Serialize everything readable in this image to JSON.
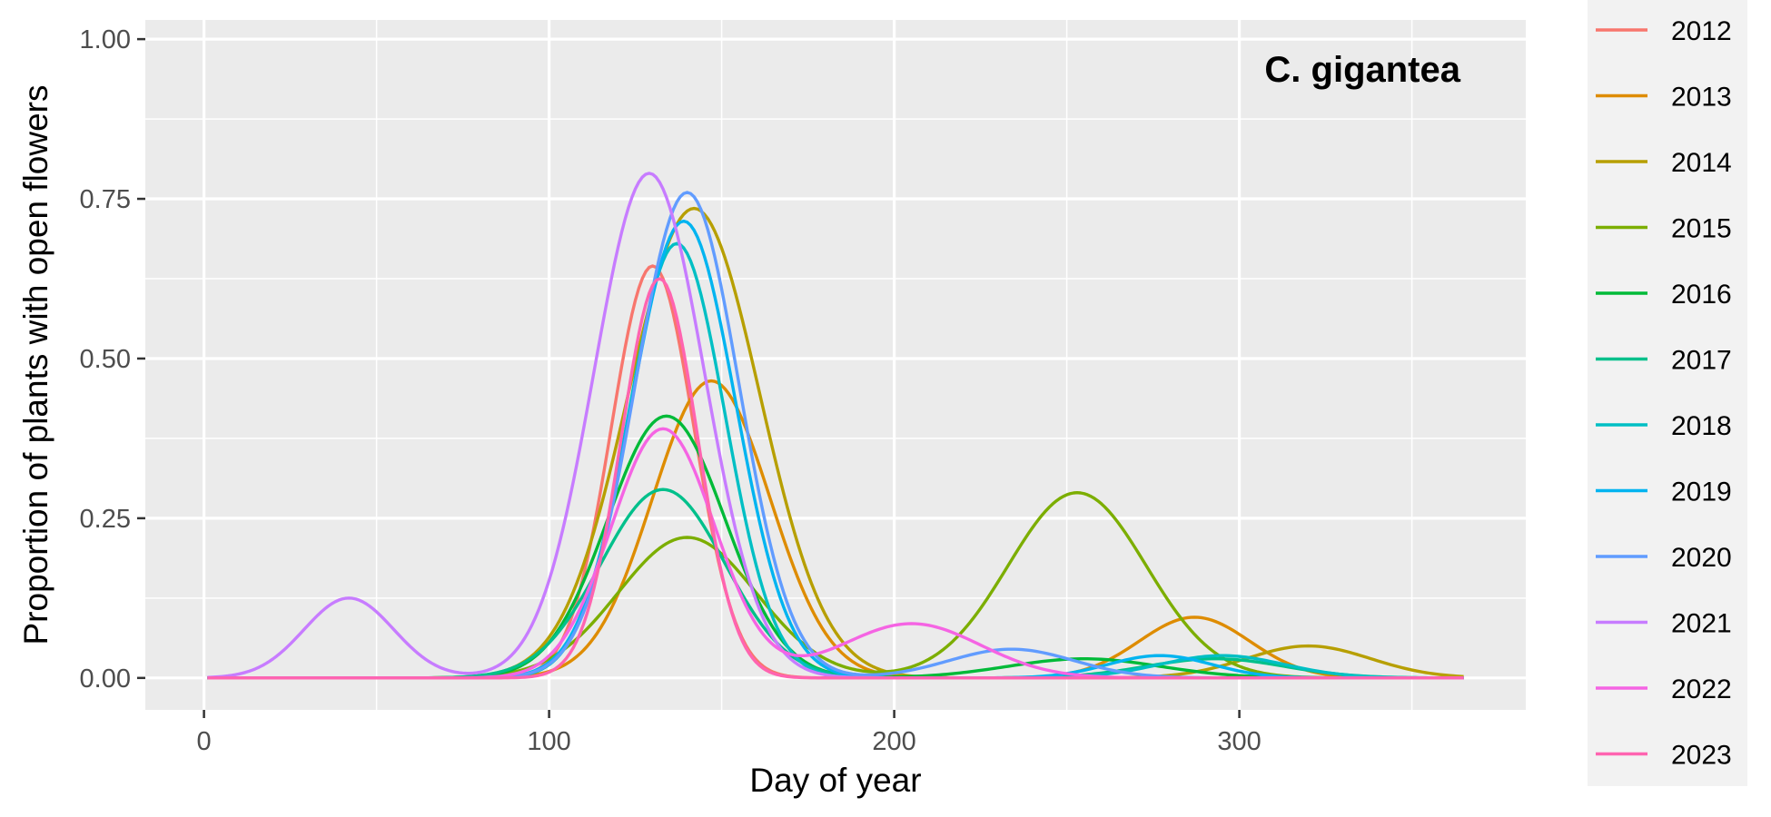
{
  "chart_data": {
    "type": "line",
    "title": "",
    "annotation": "C. gigantea",
    "xlabel": "Day of year",
    "ylabel": "Proportion of plants with open flowers",
    "xlim": [
      -17,
      383
    ],
    "ylim": [
      -0.05,
      1.03
    ],
    "x_ticks": [
      0,
      100,
      200,
      300
    ],
    "x_tick_labels": [
      "0",
      "100",
      "200",
      "300"
    ],
    "y_ticks": [
      0,
      0.25,
      0.5,
      0.75,
      1.0
    ],
    "y_tick_labels": [
      "0.00",
      "0.25",
      "0.50",
      "0.75",
      "1.00"
    ],
    "grid": true,
    "legend_position": "right",
    "background_color": "#EBEBEB",
    "series": [
      {
        "name": "2012",
        "color": "#F8766D",
        "peaks": [
          [
            130,
            0.645,
            12
          ]
        ]
      },
      {
        "name": "2013",
        "color": "#DE8C00",
        "peaks": [
          [
            147,
            0.465,
            17
          ],
          [
            287,
            0.095,
            16
          ]
        ]
      },
      {
        "name": "2014",
        "color": "#B79F00",
        "peaks": [
          [
            142,
            0.735,
            19
          ],
          [
            320,
            0.05,
            18
          ]
        ]
      },
      {
        "name": "2015",
        "color": "#7CAE00",
        "peaks": [
          [
            140,
            0.22,
            20
          ],
          [
            253,
            0.29,
            20
          ]
        ]
      },
      {
        "name": "2016",
        "color": "#00BA38",
        "peaks": [
          [
            134,
            0.41,
            17
          ],
          [
            255,
            0.03,
            22
          ]
        ]
      },
      {
        "name": "2017",
        "color": "#00C08B",
        "peaks": [
          [
            133,
            0.295,
            18
          ],
          [
            293,
            0.03,
            20
          ]
        ]
      },
      {
        "name": "2018",
        "color": "#00BFC4",
        "peaks": [
          [
            137,
            0.68,
            14
          ],
          [
            295,
            0.035,
            18
          ]
        ]
      },
      {
        "name": "2019",
        "color": "#00B4F0",
        "peaks": [
          [
            139,
            0.715,
            15
          ],
          [
            277,
            0.035,
            15
          ]
        ]
      },
      {
        "name": "2020",
        "color": "#619CFF",
        "peaks": [
          [
            140,
            0.76,
            15
          ],
          [
            234,
            0.045,
            18
          ]
        ]
      },
      {
        "name": "2021",
        "color": "#C77CFF",
        "peaks": [
          [
            42,
            0.125,
            13
          ],
          [
            129,
            0.79,
            16
          ]
        ]
      },
      {
        "name": "2022",
        "color": "#F564E3",
        "peaks": [
          [
            133,
            0.39,
            15
          ],
          [
            205,
            0.085,
            20
          ]
        ]
      },
      {
        "name": "2023",
        "color": "#FF64B0",
        "peaks": [
          [
            132,
            0.625,
            11
          ]
        ]
      }
    ]
  }
}
